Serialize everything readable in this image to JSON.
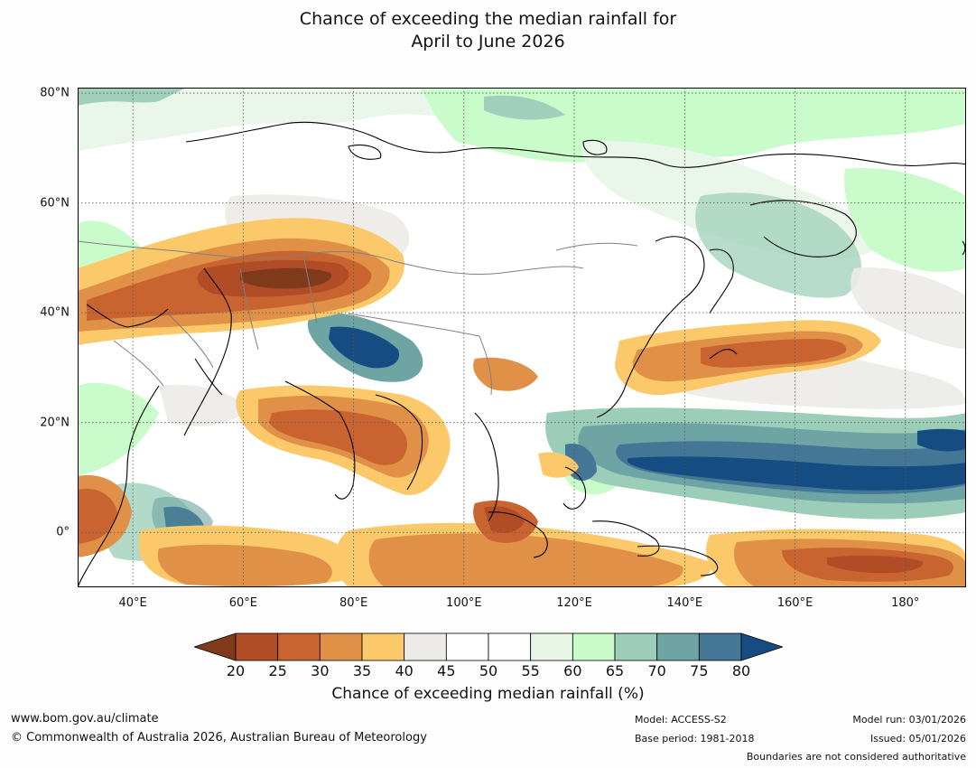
{
  "title": {
    "line1": "Chance of exceeding the median rainfall for",
    "line2": "April to June 2026"
  },
  "map": {
    "lat_labels": [
      "80°N",
      "60°N",
      "40°N",
      "20°N",
      "0°"
    ],
    "lat_values": [
      80,
      60,
      40,
      20,
      0
    ],
    "lon_labels": [
      "40°E",
      "60°E",
      "80°E",
      "100°E",
      "120°E",
      "140°E",
      "160°E",
      "180°"
    ],
    "lon_values": [
      40,
      60,
      80,
      100,
      120,
      140,
      160,
      180
    ],
    "lon_range": [
      30,
      191
    ],
    "lat_range": [
      -10,
      81
    ]
  },
  "colorbar": {
    "title": "Chance of exceeding median rainfall (%)",
    "ticks": [
      "20",
      "25",
      "30",
      "35",
      "40",
      "45",
      "50",
      "55",
      "60",
      "65",
      "70",
      "75",
      "80"
    ],
    "colors": [
      "#7f3a1c",
      "#b04c26",
      "#c96430",
      "#e09147",
      "#fcc96a",
      "#ecebe7",
      "#ffffff",
      "#ffffff",
      "#e8f6e8",
      "#c8fbc8",
      "#9bcdb8",
      "#6ea4a4",
      "#447796",
      "#154d82"
    ]
  },
  "footer": {
    "url": "www.bom.gov.au/climate",
    "copyright": "© Commonwealth of Australia 2026, Australian Bureau of Meteorology",
    "model": "Model: ACCESS-S2",
    "base_period": "Base period: 1981-2018",
    "model_run": "Model run: 03/01/2026",
    "issued": "Issued: 05/01/2026",
    "boundaries": "Boundaries are not considered authoritative"
  },
  "colors": {
    "gridline": "#555555",
    "coastline": "#000000",
    "border": "#808080"
  }
}
